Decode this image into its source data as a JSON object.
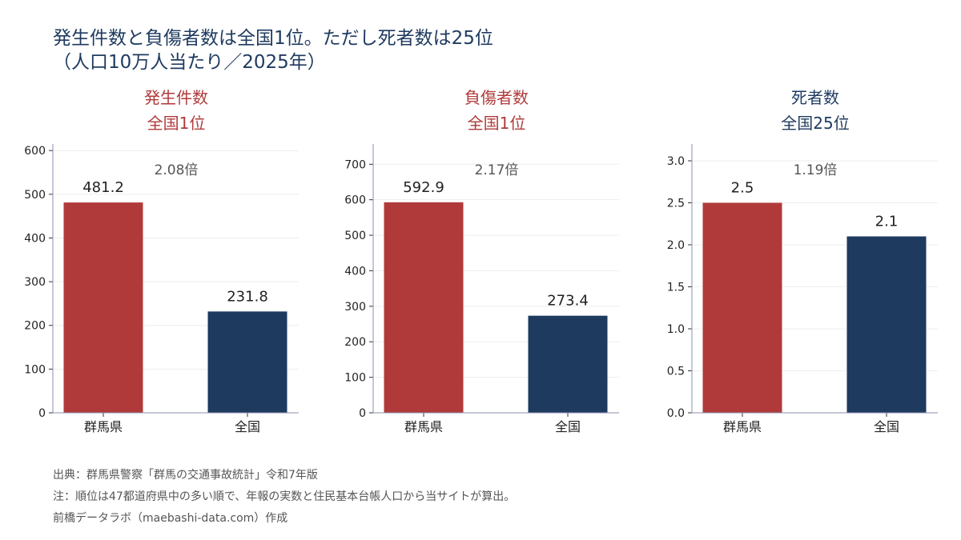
{
  "title": {
    "line1": "発生件数と負傷者数は全国1位。ただし死者数は25位",
    "line2": "（人口10万人当たり／2025年）"
  },
  "colors": {
    "gunma": "#b03a3a",
    "national": "#1e3a5f",
    "highlight_title": "#b03a3a",
    "normal_title": "#1e3a5f"
  },
  "chart_data": [
    {
      "type": "bar",
      "title": "発生件数",
      "subtitle": "全国1位",
      "title_highlight": true,
      "categories": [
        "群馬県",
        "全国"
      ],
      "values": [
        481.2,
        231.8
      ],
      "value_labels": [
        "481.2",
        "231.8"
      ],
      "ratio_label": "2.08倍",
      "ylim": [
        0,
        615
      ],
      "yticks": [
        0,
        100,
        200,
        300,
        400,
        500,
        600
      ],
      "ytick_labels": [
        "0",
        "100",
        "200",
        "300",
        "400",
        "500",
        "600"
      ],
      "grid": true
    },
    {
      "type": "bar",
      "title": "負傷者数",
      "subtitle": "全国1位",
      "title_highlight": true,
      "categories": [
        "群馬県",
        "全国"
      ],
      "values": [
        592.9,
        273.4
      ],
      "value_labels": [
        "592.9",
        "273.4"
      ],
      "ratio_label": "2.17倍",
      "ylim": [
        0,
        757
      ],
      "yticks": [
        0,
        100,
        200,
        300,
        400,
        500,
        600,
        700
      ],
      "ytick_labels": [
        "0",
        "100",
        "200",
        "300",
        "400",
        "500",
        "600",
        "700"
      ],
      "grid": true
    },
    {
      "type": "bar",
      "title": "死者数",
      "subtitle": "全国25位",
      "title_highlight": false,
      "categories": [
        "群馬県",
        "全国"
      ],
      "values": [
        2.5,
        2.1
      ],
      "value_labels": [
        "2.5",
        "2.1"
      ],
      "ratio_label": "1.19倍",
      "ylim": [
        0,
        3.2
      ],
      "yticks": [
        0,
        0.5,
        1.0,
        1.5,
        2.0,
        2.5,
        3.0
      ],
      "ytick_labels": [
        "0.0",
        "0.5",
        "1.0",
        "1.5",
        "2.0",
        "2.5",
        "3.0"
      ],
      "grid": true
    }
  ],
  "footer": {
    "source": "出典：群馬県警察「群馬の交通事故統計」令和7年版",
    "note": "注：順位は47都道府県中の多い順で、年報の実数と住民基本台帳人口から当サイトが算出。",
    "credit": "前橋データラボ（maebashi-data.com）作成"
  }
}
